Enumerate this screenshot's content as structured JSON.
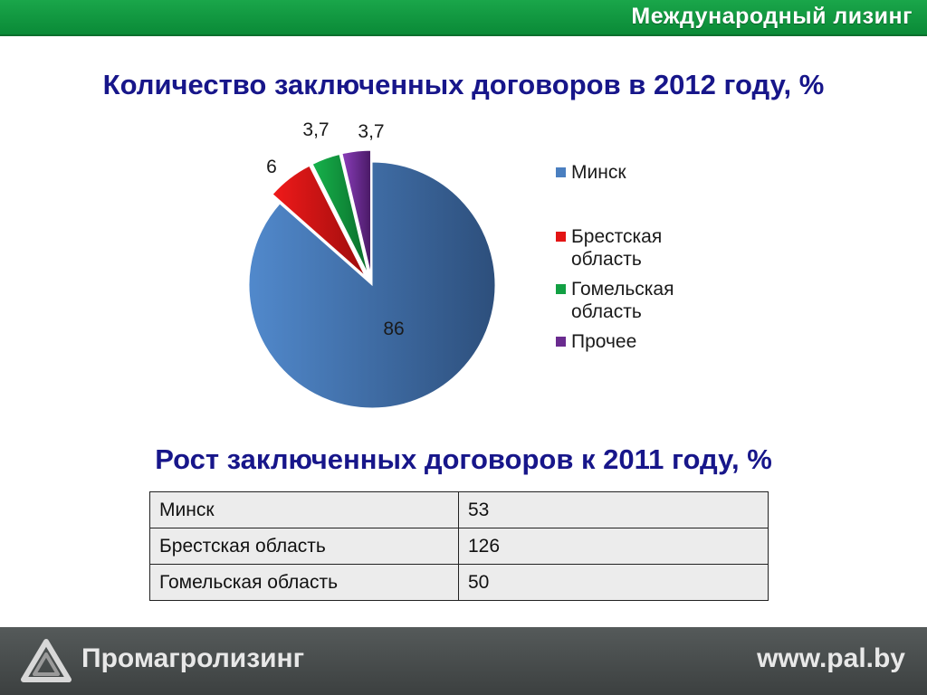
{
  "header": {
    "brand": "Международный лизинг"
  },
  "colors": {
    "header_green": "#0a8a37",
    "title_blue": "#17168a",
    "footer_gray": "#4a4f4f"
  },
  "title_pie": "Количество заключенных договоров в 2012 году, %",
  "chart_data": {
    "type": "pie",
    "categories": [
      "Минск",
      "Брестская область",
      "Гомельская область",
      "Прочее"
    ],
    "values": [
      86,
      6,
      3.7,
      3.7
    ],
    "labels": [
      "86",
      "6",
      "3,7",
      "3,7"
    ],
    "colors": [
      "#4a7fc0",
      "#e31414",
      "#12a043",
      "#6a2b8f"
    ],
    "legend_position": "right"
  },
  "title_table": "Рост заключенных договоров к 2011 году, %",
  "table": {
    "rows": [
      {
        "region": "Минск",
        "value": "53"
      },
      {
        "region": "Брестская область",
        "value": "126"
      },
      {
        "region": "Гомельская область",
        "value": "50"
      }
    ]
  },
  "footer": {
    "company": "Промагролизинг",
    "site": "www.pal.by"
  }
}
